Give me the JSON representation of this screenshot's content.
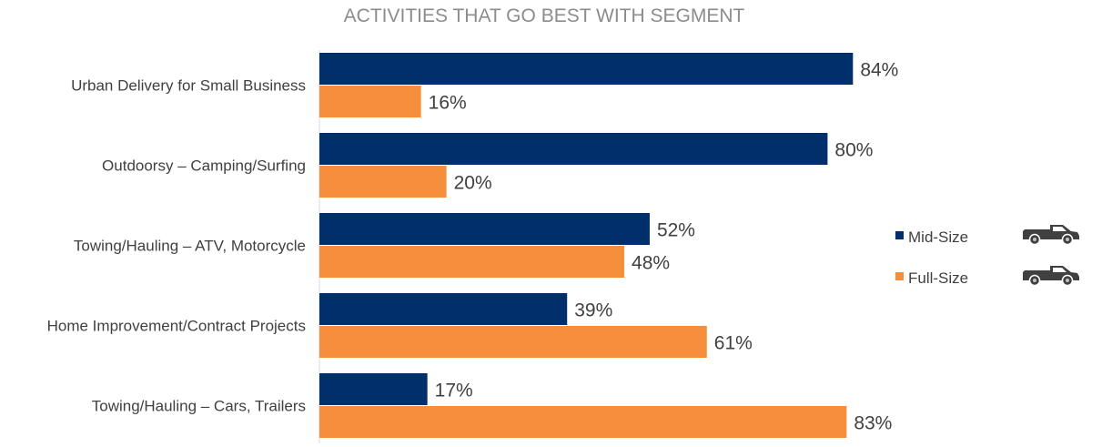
{
  "chart_data": {
    "type": "bar",
    "orientation": "horizontal",
    "title": "ACTIVITIES THAT GO BEST WITH SEGMENT",
    "categories": [
      "Urban Delivery for Small Business",
      "Outdoorsy – Camping/Surfing",
      "Towing/Hauling – ATV, Motorcycle",
      "Home Improvement/Contract Projects",
      "Towing/Hauling – Cars, Trailers"
    ],
    "series": [
      {
        "name": "Mid-Size",
        "color": "#002f6c",
        "values": [
          84,
          80,
          52,
          39,
          17
        ],
        "labels": [
          "84%",
          "80%",
          "52%",
          "39%",
          "17%"
        ]
      },
      {
        "name": "Full-Size",
        "color": "#f58f3c",
        "values": [
          16,
          20,
          48,
          61,
          83
        ],
        "labels": [
          "16%",
          "20%",
          "48%",
          "61%",
          "83%"
        ]
      }
    ],
    "xlim": [
      0,
      100
    ],
    "grid": false,
    "legend_position": "right",
    "legend_icons": [
      "pickup-truck-icon",
      "pickup-truck-icon"
    ]
  }
}
